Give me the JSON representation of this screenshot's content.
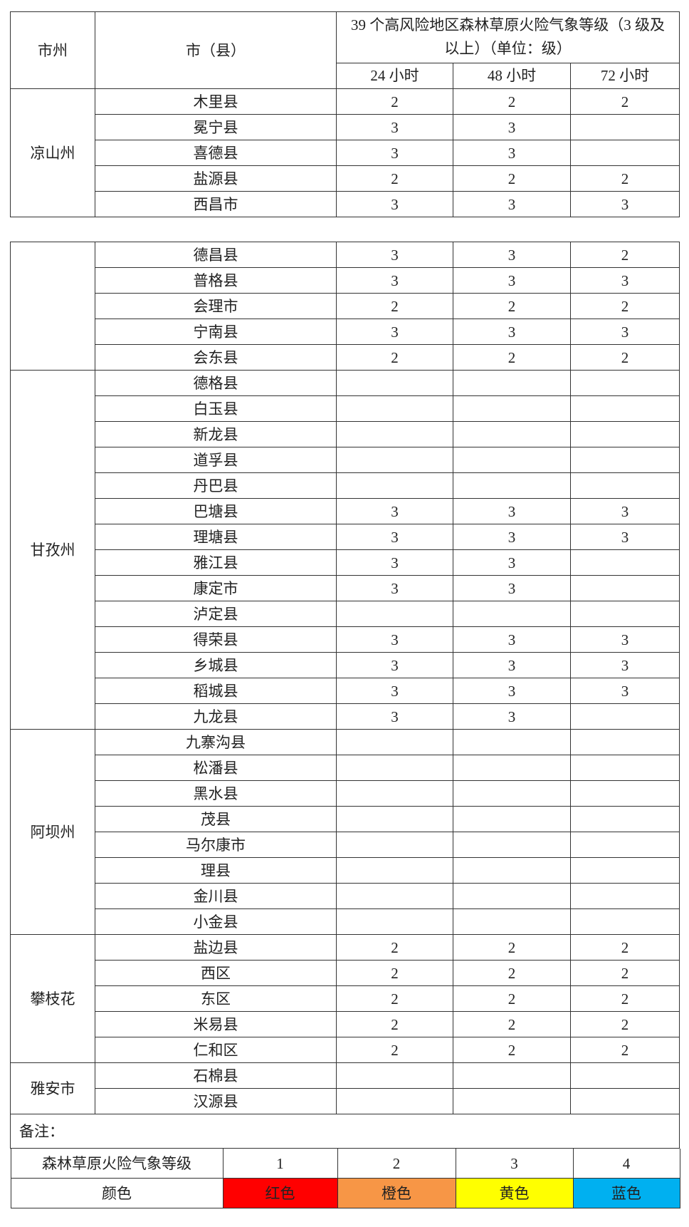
{
  "header": {
    "col_region": "市州",
    "col_county": "市（县）",
    "col_group": "39 个高风险地区森林草原火险气象等级（3 级及以上）（单位：级）",
    "col_24h": "24 小时",
    "col_48h": "48 小时",
    "col_72h": "72 小时"
  },
  "table1": [
    {
      "region": "凉山州",
      "rows": [
        {
          "county": "木里县",
          "h24": "2",
          "h48": "2",
          "h72": "2"
        },
        {
          "county": "冕宁县",
          "h24": "3",
          "h48": "3",
          "h72": ""
        },
        {
          "county": "喜德县",
          "h24": "3",
          "h48": "3",
          "h72": ""
        },
        {
          "county": "盐源县",
          "h24": "2",
          "h48": "2",
          "h72": "2"
        },
        {
          "county": "西昌市",
          "h24": "3",
          "h48": "3",
          "h72": "3"
        }
      ]
    }
  ],
  "table2": [
    {
      "region": "",
      "rows": [
        {
          "county": "德昌县",
          "h24": "3",
          "h48": "3",
          "h72": "2"
        },
        {
          "county": "普格县",
          "h24": "3",
          "h48": "3",
          "h72": "3"
        },
        {
          "county": "会理市",
          "h24": "2",
          "h48": "2",
          "h72": "2"
        },
        {
          "county": "宁南县",
          "h24": "3",
          "h48": "3",
          "h72": "3"
        },
        {
          "county": "会东县",
          "h24": "2",
          "h48": "2",
          "h72": "2"
        }
      ]
    },
    {
      "region": "甘孜州",
      "rows": [
        {
          "county": "德格县",
          "h24": "",
          "h48": "",
          "h72": ""
        },
        {
          "county": "白玉县",
          "h24": "",
          "h48": "",
          "h72": ""
        },
        {
          "county": "新龙县",
          "h24": "",
          "h48": "",
          "h72": ""
        },
        {
          "county": "道孚县",
          "h24": "",
          "h48": "",
          "h72": ""
        },
        {
          "county": "丹巴县",
          "h24": "",
          "h48": "",
          "h72": ""
        },
        {
          "county": "巴塘县",
          "h24": "3",
          "h48": "3",
          "h72": "3"
        },
        {
          "county": "理塘县",
          "h24": "3",
          "h48": "3",
          "h72": "3"
        },
        {
          "county": "雅江县",
          "h24": "3",
          "h48": "3",
          "h72": ""
        },
        {
          "county": "康定市",
          "h24": "3",
          "h48": "3",
          "h72": ""
        },
        {
          "county": "泸定县",
          "h24": "",
          "h48": "",
          "h72": ""
        },
        {
          "county": "得荣县",
          "h24": "3",
          "h48": "3",
          "h72": "3"
        },
        {
          "county": "乡城县",
          "h24": "3",
          "h48": "3",
          "h72": "3"
        },
        {
          "county": "稻城县",
          "h24": "3",
          "h48": "3",
          "h72": "3"
        },
        {
          "county": "九龙县",
          "h24": "3",
          "h48": "3",
          "h72": ""
        }
      ]
    },
    {
      "region": "阿坝州",
      "rows": [
        {
          "county": "九寨沟县",
          "h24": "",
          "h48": "",
          "h72": ""
        },
        {
          "county": "松潘县",
          "h24": "",
          "h48": "",
          "h72": ""
        },
        {
          "county": "黑水县",
          "h24": "",
          "h48": "",
          "h72": ""
        },
        {
          "county": "茂县",
          "h24": "",
          "h48": "",
          "h72": ""
        },
        {
          "county": "马尔康市",
          "h24": "",
          "h48": "",
          "h72": ""
        },
        {
          "county": "理县",
          "h24": "",
          "h48": "",
          "h72": ""
        },
        {
          "county": "金川县",
          "h24": "",
          "h48": "",
          "h72": ""
        },
        {
          "county": "小金县",
          "h24": "",
          "h48": "",
          "h72": ""
        }
      ]
    },
    {
      "region": "攀枝花",
      "rows": [
        {
          "county": "盐边县",
          "h24": "2",
          "h48": "2",
          "h72": "2"
        },
        {
          "county": "西区",
          "h24": "2",
          "h48": "2",
          "h72": "2"
        },
        {
          "county": "东区",
          "h24": "2",
          "h48": "2",
          "h72": "2"
        },
        {
          "county": "米易县",
          "h24": "2",
          "h48": "2",
          "h72": "2"
        },
        {
          "county": "仁和区",
          "h24": "2",
          "h48": "2",
          "h72": "2"
        }
      ]
    },
    {
      "region": "雅安市",
      "rows": [
        {
          "county": "石棉县",
          "h24": "",
          "h48": "",
          "h72": ""
        },
        {
          "county": "汉源县",
          "h24": "",
          "h48": "",
          "h72": ""
        }
      ]
    }
  ],
  "note_label": "备注：",
  "legend": {
    "level_label": "森林草原火险气象等级",
    "color_label": "颜色",
    "levels": [
      {
        "level": "1",
        "color_name": "红色",
        "color": "#ff0000"
      },
      {
        "level": "2",
        "color_name": "橙色",
        "color": "#f79646"
      },
      {
        "level": "3",
        "color_name": "黄色",
        "color": "#ffff00"
      },
      {
        "level": "4",
        "color_name": "蓝色",
        "color": "#00b0f0"
      }
    ]
  }
}
